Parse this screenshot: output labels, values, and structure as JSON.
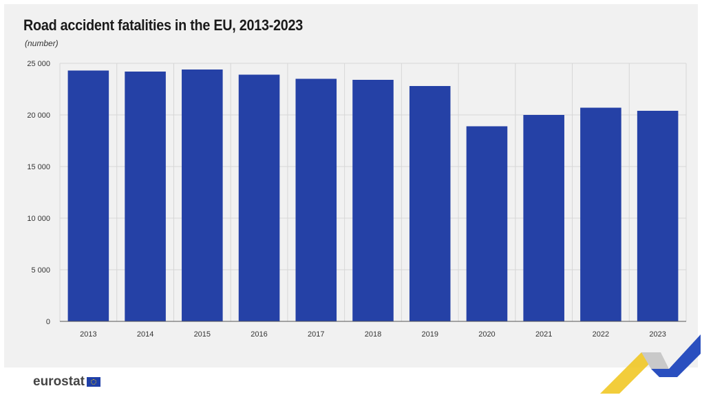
{
  "header": {
    "title": "Road accident fatalities in the EU, 2013-2023",
    "subtitle": "(number)"
  },
  "footer": {
    "brand": "eurostat",
    "flag_icon": "eu-flag-icon"
  },
  "colors": {
    "bar": "#2541a6",
    "grid": "#d6d6d6",
    "background": "#f1f1f1"
  },
  "chart_data": {
    "type": "bar",
    "title": "Road accident fatalities in the EU, 2013-2023",
    "subtitle": "(number)",
    "xlabel": "",
    "ylabel": "",
    "categories": [
      "2013",
      "2014",
      "2015",
      "2016",
      "2017",
      "2018",
      "2019",
      "2020",
      "2021",
      "2022",
      "2023"
    ],
    "values": [
      24300,
      24200,
      24400,
      23900,
      23500,
      23400,
      22800,
      18900,
      20000,
      20700,
      20400
    ],
    "ylim": [
      0,
      25000
    ],
    "yticks": [
      0,
      5000,
      10000,
      15000,
      20000,
      25000
    ],
    "ytick_labels": [
      "0",
      "5 000",
      "10 000",
      "15 000",
      "20 000",
      "25 000"
    ],
    "grid": true,
    "legend": "none"
  }
}
